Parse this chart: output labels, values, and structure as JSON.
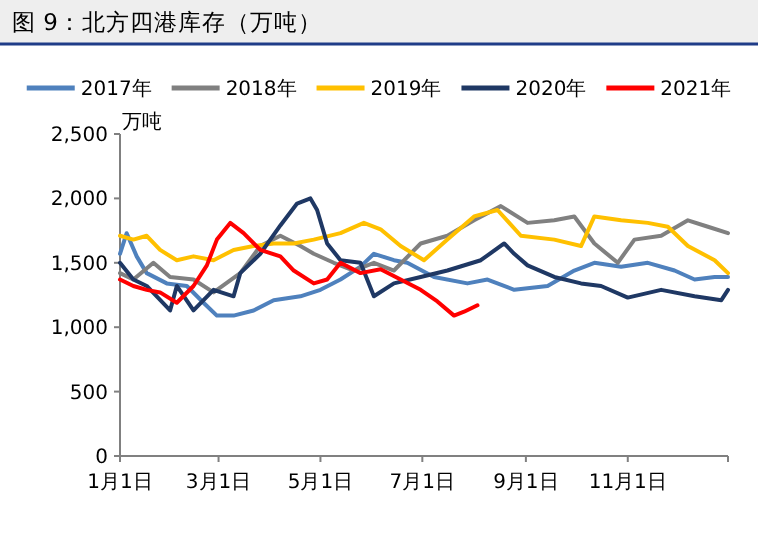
{
  "chart_data": {
    "type": "line",
    "title": "图 9：北方四港库存（万吨）",
    "ylabel": "万吨",
    "legend": "top",
    "grid": false,
    "marker": "none",
    "line_style": "solid",
    "xlim": [
      "--01-01",
      "--12-31"
    ],
    "xticks": [
      {
        "value": "--01-01",
        "label": "1月1日"
      },
      {
        "value": "--03-01",
        "label": "3月1日"
      },
      {
        "value": "--05-01",
        "label": "5月1日"
      },
      {
        "value": "--07-01",
        "label": "7月1日"
      },
      {
        "value": "--09-01",
        "label": "9月1日"
      },
      {
        "value": "--11-01",
        "label": "11月1日"
      }
    ],
    "ylim": [
      0,
      2500
    ],
    "yticks": [
      {
        "value": 0,
        "label": "0"
      },
      {
        "value": 500,
        "label": "500"
      },
      {
        "value": 1000,
        "label": "1,000"
      },
      {
        "value": 1500,
        "label": "1,500"
      },
      {
        "value": 2000,
        "label": "2,000"
      },
      {
        "value": 2500,
        "label": "2,500"
      }
    ],
    "series": [
      {
        "name": "2017年",
        "color": "#4f81bd",
        "x": [
          "--01-01",
          "--01-05",
          "--01-11",
          "--01-17",
          "--01-29",
          "--02-10",
          "--02-20",
          "--02-28",
          "--03-10",
          "--03-22",
          "--04-03",
          "--04-19",
          "--05-01",
          "--05-13",
          "--05-25",
          "--06-02",
          "--06-14",
          "--06-22",
          "--07-08",
          "--07-28",
          "--08-09",
          "--08-25",
          "--09-14",
          "--09-30",
          "--10-12",
          "--10-28",
          "--11-13",
          "--11-29",
          "--12-11",
          "--12-23",
          "--12-31"
        ],
        "values": [
          1570,
          1730,
          1550,
          1420,
          1340,
          1320,
          1190,
          1090,
          1090,
          1130,
          1210,
          1240,
          1290,
          1370,
          1470,
          1570,
          1520,
          1500,
          1390,
          1340,
          1370,
          1290,
          1320,
          1440,
          1500,
          1470,
          1500,
          1440,
          1370,
          1390,
          1390
        ]
      },
      {
        "name": "2018年",
        "color": "#808080",
        "x": [
          "--01-01",
          "--01-09",
          "--01-21",
          "--01-31",
          "--02-14",
          "--02-26",
          "--03-14",
          "--03-26",
          "--04-07",
          "--04-19",
          "--04-27",
          "--05-09",
          "--05-21",
          "--06-02",
          "--06-14",
          "--06-30",
          "--07-16",
          "--08-01",
          "--08-17",
          "--09-02",
          "--09-18",
          "--09-30",
          "--10-12",
          "--10-26",
          "--11-05",
          "--11-21",
          "--12-07",
          "--12-19",
          "--12-31"
        ],
        "values": [
          1420,
          1370,
          1500,
          1390,
          1370,
          1270,
          1420,
          1630,
          1710,
          1630,
          1570,
          1500,
          1440,
          1500,
          1440,
          1650,
          1710,
          1830,
          1940,
          1810,
          1830,
          1860,
          1650,
          1500,
          1680,
          1710,
          1830,
          1780,
          1730
        ]
      },
      {
        "name": "2019年",
        "color": "#ffc000",
        "x": [
          "--01-01",
          "--01-09",
          "--01-17",
          "--01-25",
          "--02-04",
          "--02-14",
          "--02-26",
          "--03-10",
          "--03-22",
          "--04-03",
          "--04-15",
          "--04-27",
          "--05-13",
          "--05-27",
          "--06-06",
          "--06-18",
          "--07-02",
          "--07-16",
          "--08-01",
          "--08-15",
          "--08-29",
          "--09-18",
          "--10-04",
          "--10-12",
          "--10-28",
          "--11-13",
          "--11-25",
          "--12-07",
          "--12-23",
          "--12-31"
        ],
        "values": [
          1710,
          1680,
          1710,
          1600,
          1520,
          1550,
          1520,
          1600,
          1630,
          1650,
          1650,
          1680,
          1730,
          1810,
          1760,
          1630,
          1520,
          1680,
          1860,
          1910,
          1710,
          1680,
          1630,
          1860,
          1830,
          1810,
          1780,
          1630,
          1520,
          1420
        ]
      },
      {
        "name": "2020年",
        "color": "#1f3864",
        "x": [
          "--01-01",
          "--01-09",
          "--01-17",
          "--01-31",
          "--02-04",
          "--02-14",
          "--02-26",
          "--03-10",
          "--03-14",
          "--03-26",
          "--04-07",
          "--04-17",
          "--04-25",
          "--04-29",
          "--05-05",
          "--05-13",
          "--05-25",
          "--06-02",
          "--06-14",
          "--06-30",
          "--07-16",
          "--08-05",
          "--08-19",
          "--08-25",
          "--09-02",
          "--09-18",
          "--10-04",
          "--10-16",
          "--11-01",
          "--11-21",
          "--12-11",
          "--12-27",
          "--12-31"
        ],
        "values": [
          1500,
          1370,
          1320,
          1130,
          1320,
          1130,
          1290,
          1240,
          1420,
          1570,
          1790,
          1960,
          2000,
          1910,
          1650,
          1520,
          1500,
          1240,
          1340,
          1390,
          1440,
          1520,
          1650,
          1570,
          1480,
          1390,
          1340,
          1320,
          1230,
          1290,
          1240,
          1210,
          1290
        ]
      },
      {
        "name": "2021年",
        "color": "#ff0000",
        "x": [
          "--01-01",
          "--01-09",
          "--01-17",
          "--01-25",
          "--02-04",
          "--02-14",
          "--02-22",
          "--02-28",
          "--03-08",
          "--03-16",
          "--03-26",
          "--04-07",
          "--04-15",
          "--04-27",
          "--05-05",
          "--05-13",
          "--05-25",
          "--06-06",
          "--06-18",
          "--06-30",
          "--07-10",
          "--07-20",
          "--07-26",
          "--08-03"
        ],
        "values": [
          1370,
          1320,
          1290,
          1270,
          1190,
          1320,
          1480,
          1680,
          1810,
          1730,
          1600,
          1550,
          1440,
          1340,
          1370,
          1500,
          1420,
          1450,
          1370,
          1290,
          1200,
          1090,
          1120,
          1170
        ]
      }
    ]
  }
}
